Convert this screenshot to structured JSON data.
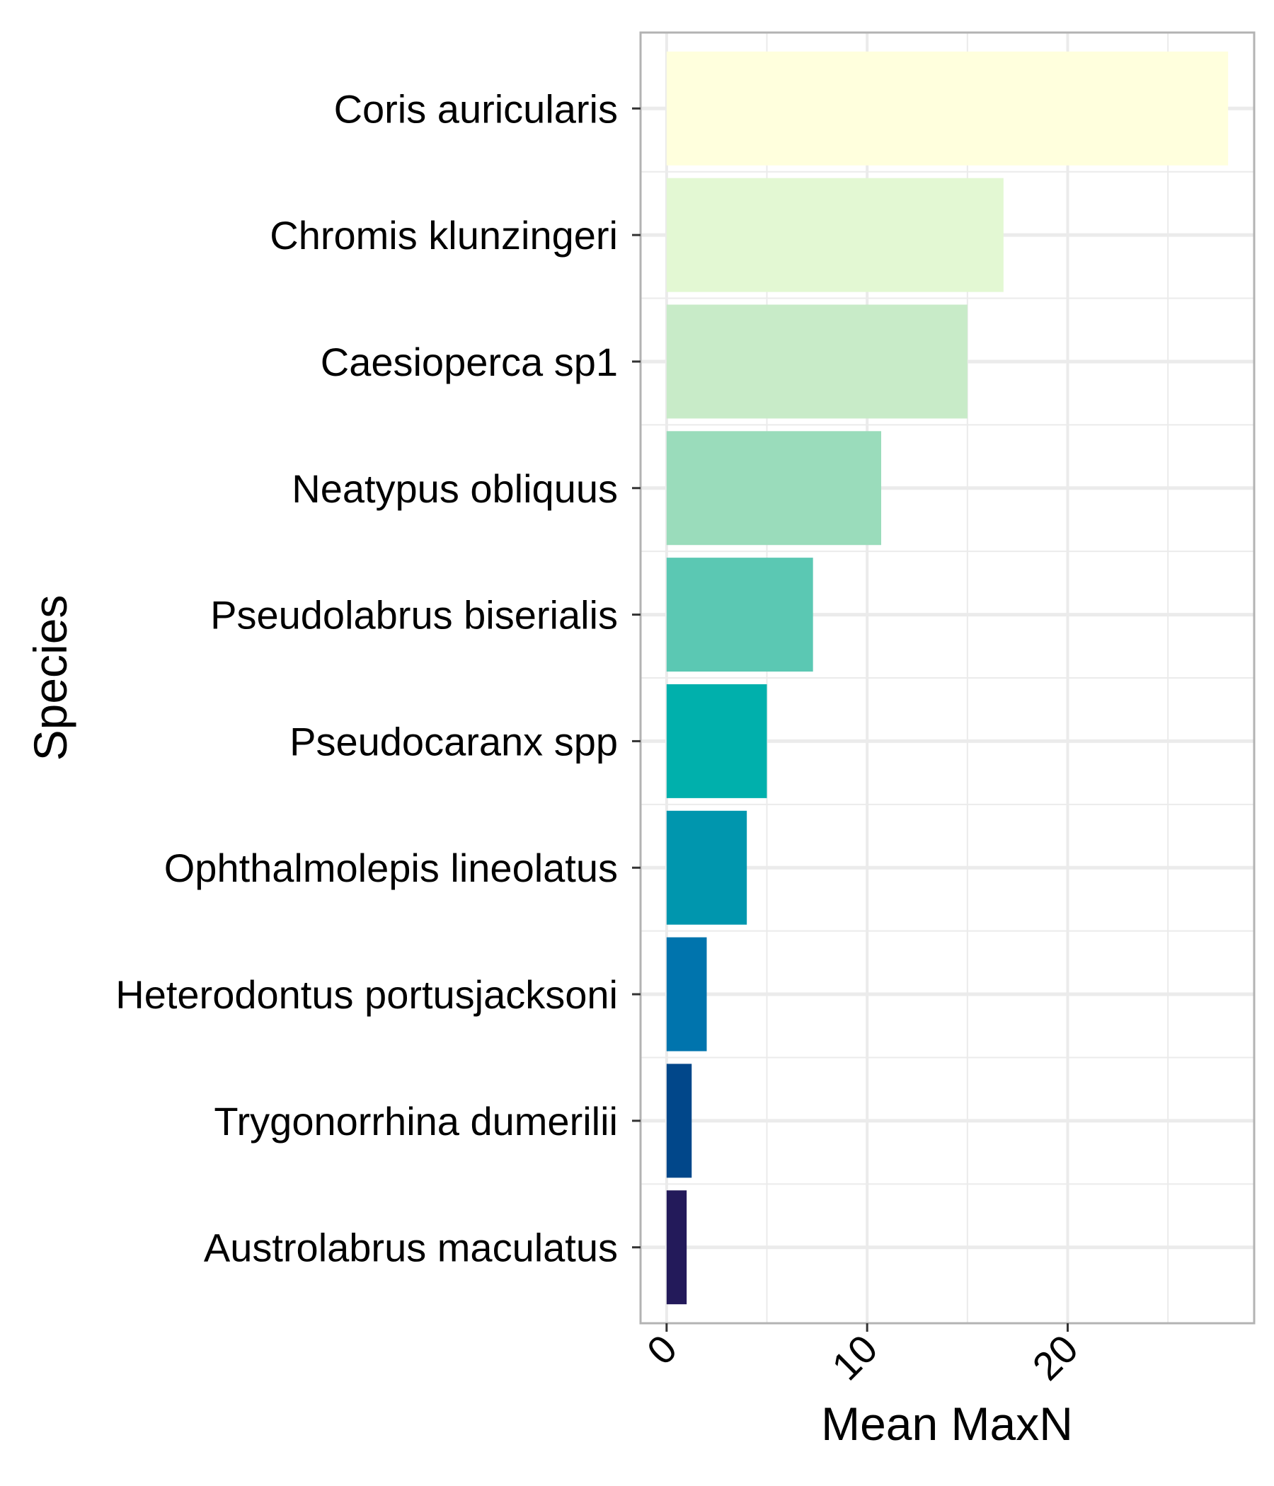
{
  "chart_data": {
    "type": "bar",
    "orientation": "horizontal",
    "xlabel": "Mean MaxN",
    "ylabel": "Species",
    "xlim": [
      -1.3,
      29.3
    ],
    "x_ticks": [
      "0",
      "10",
      "20"
    ],
    "x_tick_values": [
      0,
      10,
      20
    ],
    "x_minor_values": [
      5,
      15,
      25
    ],
    "grid": true,
    "categories": [
      "Coris auricularis",
      "Chromis klunzingeri",
      "Caesioperca sp1",
      "Neatypus obliquus",
      "Pseudolabrus biserialis",
      "Pseudocaranx spp",
      "Ophthalmolepis lineolatus",
      "Heterodontus portusjacksoni",
      "Trygonorrhina dumerilii",
      "Austrolabrus maculatus"
    ],
    "values": [
      28.0,
      16.8,
      15.0,
      10.7,
      7.3,
      5.0,
      4.0,
      2.0,
      1.25,
      1.0
    ],
    "colors": [
      "#FFFFDD",
      "#E3F8D3",
      "#C8EBC8",
      "#9ADCBB",
      "#5BC8B3",
      "#00B0AC",
      "#0096AE",
      "#0074AD",
      "#01478A",
      "#231A5A"
    ]
  }
}
